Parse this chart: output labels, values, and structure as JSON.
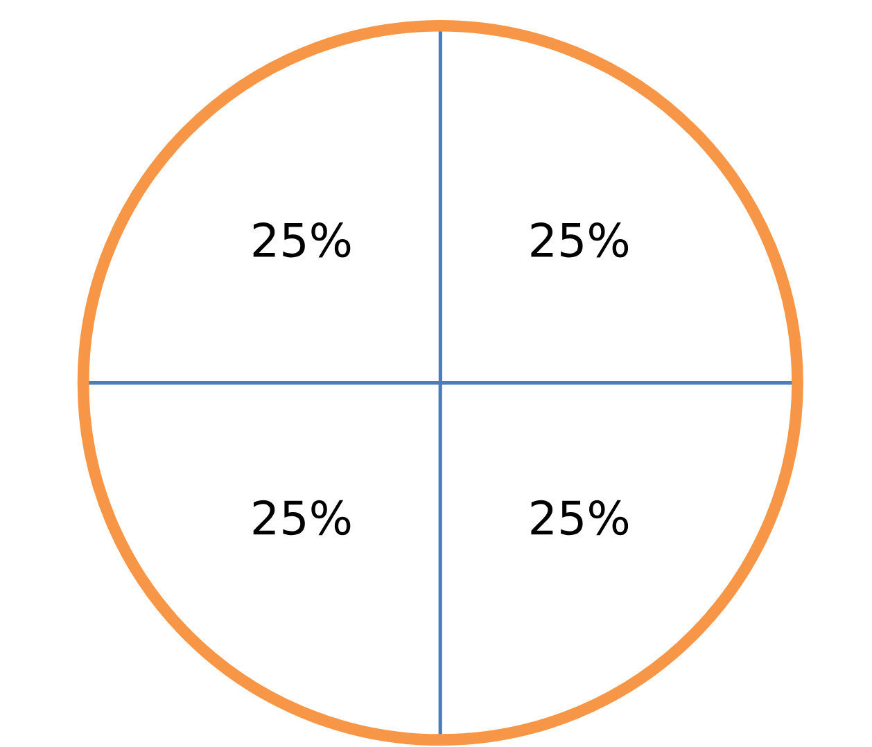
{
  "chart_data": {
    "type": "pie",
    "categories": [
      null,
      null,
      null,
      null
    ],
    "values": [
      25,
      25,
      25,
      25
    ],
    "colors": [
      "#ffffff",
      "#ffffff",
      "#ffffff",
      "#ffffff"
    ],
    "value_labels": [
      "25%",
      "25%",
      "25%",
      "25%"
    ]
  }
}
